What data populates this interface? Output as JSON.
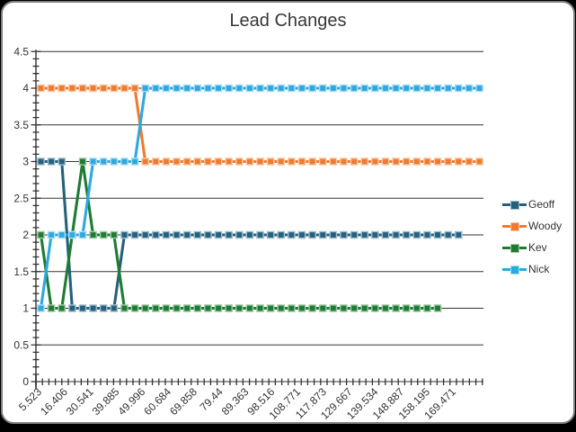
{
  "frame": {
    "background": "#000000",
    "card_border": "#7e7e7e",
    "card_background": "#ffffff"
  },
  "title": "Lead Changes",
  "legend": {
    "position": "right",
    "items": [
      {
        "label": "Geoff"
      },
      {
        "label": "Woody"
      },
      {
        "label": "Kev"
      },
      {
        "label": "Nick"
      }
    ]
  },
  "chart_data": {
    "type": "line",
    "title": "Lead Changes",
    "xlabel": "",
    "ylabel": "",
    "ylim": [
      0,
      4.5
    ],
    "grid": "horizontal gridlines every 0.5, dark gray",
    "legend_position": "right",
    "axis_color": "#333333",
    "gridline_color": "#333333",
    "tick_label_color": "#333333",
    "x_tick_labels": [
      "5.523",
      "16.406",
      "30.541",
      "39.885",
      "49.996",
      "60.684",
      "69.858",
      "79.44",
      "89.363",
      "98.516",
      "108.771",
      "117.873",
      "129.667",
      "139.534",
      "148.887",
      "158.195",
      "169.471"
    ],
    "y_tick_labels": [
      "0",
      "0.5",
      "1",
      "1.5",
      "2",
      "2.5",
      "3",
      "3.5",
      "4",
      "4.5"
    ],
    "y_ticks": [
      0,
      0.5,
      1,
      1.5,
      2,
      2.5,
      3,
      3.5,
      4,
      4.5
    ],
    "point_count": 43,
    "series": [
      {
        "name": "Geoff",
        "color": "#26607D",
        "marker_edge": "#9ebfce",
        "values": [
          3,
          3,
          3,
          1,
          1,
          1,
          1,
          1,
          2,
          2,
          2,
          2,
          2,
          2,
          2,
          2,
          2,
          2,
          2,
          2,
          2,
          2,
          2,
          2,
          2,
          2,
          2,
          2,
          2,
          2,
          2,
          2,
          2,
          2,
          2,
          2,
          2,
          2,
          2,
          2,
          2,
          null,
          null
        ]
      },
      {
        "name": "Woody",
        "color": "#EE7B2F",
        "marker_edge": "#f8c8a4",
        "values": [
          4,
          4,
          4,
          4,
          4,
          4,
          4,
          4,
          4,
          4,
          3,
          3,
          3,
          3,
          3,
          3,
          3,
          3,
          3,
          3,
          3,
          3,
          3,
          3,
          3,
          3,
          3,
          3,
          3,
          3,
          3,
          3,
          3,
          3,
          3,
          3,
          3,
          3,
          3,
          3,
          3,
          3,
          3
        ]
      },
      {
        "name": "Kev",
        "color": "#1F7B33",
        "marker_edge": "#a0c9a6",
        "values": [
          2,
          1,
          1,
          2,
          3,
          2,
          2,
          2,
          1,
          1,
          1,
          1,
          1,
          1,
          1,
          1,
          1,
          1,
          1,
          1,
          1,
          1,
          1,
          1,
          1,
          1,
          1,
          1,
          1,
          1,
          1,
          1,
          1,
          1,
          1,
          1,
          1,
          1,
          1,
          null,
          null,
          null,
          null
        ]
      },
      {
        "name": "Nick",
        "color": "#2EA8DE",
        "marker_edge": "#aadcf4",
        "values": [
          1,
          2,
          2,
          2,
          2,
          3,
          3,
          3,
          3,
          3,
          4,
          4,
          4,
          4,
          4,
          4,
          4,
          4,
          4,
          4,
          4,
          4,
          4,
          4,
          4,
          4,
          4,
          4,
          4,
          4,
          4,
          4,
          4,
          4,
          4,
          4,
          4,
          4,
          4,
          4,
          4,
          4,
          4
        ]
      }
    ]
  }
}
